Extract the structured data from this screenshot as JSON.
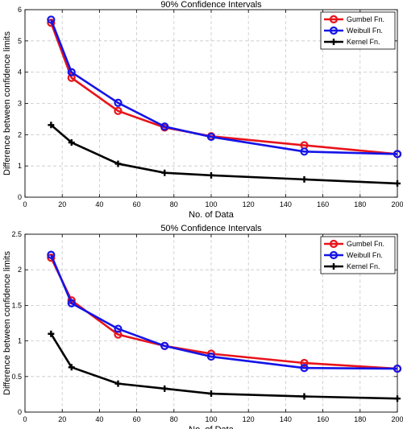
{
  "chart_data": [
    {
      "type": "line",
      "title": "90% Confidence Intervals",
      "xlabel": "No. of Data",
      "ylabel": "Difference between confidence limits",
      "xlim": [
        0,
        200
      ],
      "ylim": [
        0,
        6
      ],
      "xticks": [
        0,
        20,
        40,
        60,
        80,
        100,
        120,
        140,
        160,
        180,
        200
      ],
      "yticks": [
        0,
        1,
        2,
        3,
        4,
        5,
        6
      ],
      "grid": true,
      "legend_position": "top-right",
      "x": [
        14,
        25,
        50,
        75,
        100,
        150,
        200
      ],
      "series": [
        {
          "name": "Gumbel Fn.",
          "color": "#e8141b",
          "marker": "circle",
          "values": [
            5.58,
            3.82,
            2.76,
            2.23,
            1.95,
            1.66,
            1.38
          ]
        },
        {
          "name": "Weibull Fn.",
          "color": "#1414e8",
          "marker": "circle",
          "values": [
            5.68,
            4.0,
            3.02,
            2.26,
            1.93,
            1.46,
            1.38
          ]
        },
        {
          "name": "Kernel Fn.",
          "color": "#000000",
          "marker": "plus",
          "values": [
            2.31,
            1.75,
            1.07,
            0.78,
            0.7,
            0.57,
            0.44
          ]
        }
      ]
    },
    {
      "type": "line",
      "title": "50% Confidence Intervals",
      "xlabel": "No. of Data",
      "ylabel": "Difference between confidence limits",
      "xlim": [
        0,
        200
      ],
      "ylim": [
        0,
        2.5
      ],
      "xticks": [
        0,
        20,
        40,
        60,
        80,
        100,
        120,
        140,
        160,
        180,
        200
      ],
      "yticks": [
        0,
        0.5,
        1,
        1.5,
        2,
        2.5
      ],
      "grid": true,
      "legend_position": "top-right",
      "x": [
        14,
        25,
        50,
        75,
        100,
        150,
        200
      ],
      "series": [
        {
          "name": "Gumbel Fn.",
          "color": "#e8141b",
          "marker": "circle",
          "values": [
            2.17,
            1.57,
            1.09,
            0.93,
            0.82,
            0.69,
            0.61
          ]
        },
        {
          "name": "Weibull Fn.",
          "color": "#1414e8",
          "marker": "circle",
          "values": [
            2.21,
            1.53,
            1.17,
            0.93,
            0.78,
            0.62,
            0.61
          ]
        },
        {
          "name": "Kernel Fn.",
          "color": "#000000",
          "marker": "plus",
          "values": [
            1.1,
            0.63,
            0.4,
            0.33,
            0.26,
            0.22,
            0.19
          ]
        }
      ]
    }
  ]
}
